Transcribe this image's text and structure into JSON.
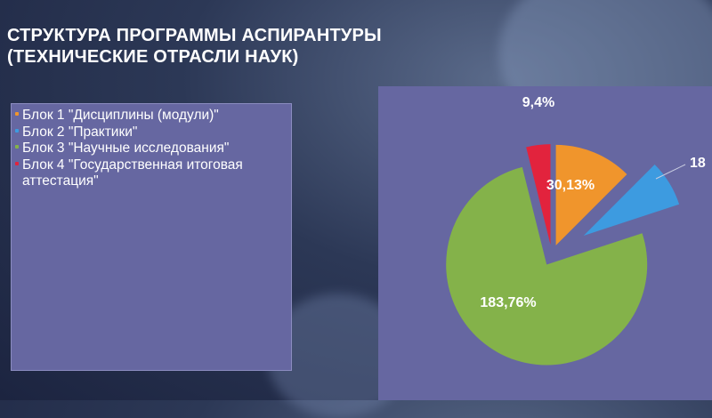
{
  "slide": {
    "title_line1": "СТРУКТУРА ПРОГРАММЫ АСПИРАНТУРЫ",
    "title_line2": "(ТЕХНИЧЕСКИЕ ОТРАСЛИ НАУК)"
  },
  "colors": {
    "block1": "#f0952c",
    "block2": "#3d9be0",
    "block3": "#84b24a",
    "block4": "#e2233d",
    "panel": "#6667a1"
  },
  "chart_data": {
    "type": "pie",
    "legend_position": "left",
    "slices": [
      {
        "label": "Блок 1 \"Дисциплины (модули)\"",
        "value": 30.13,
        "value_label": "30,13%",
        "color": "#f0952c"
      },
      {
        "label": "Блок 2 \"Практики\"",
        "value": 18,
        "value_label": "18",
        "color": "#3d9be0"
      },
      {
        "label": "Блок 3 \"Научные исследования\"",
        "value": 183.76,
        "value_label": "183,76%",
        "color": "#84b24a"
      },
      {
        "label": "Блок 4 \"Государственная итоговая аттестация\"",
        "value": 9.4,
        "value_label": "9,4%",
        "color": "#e2233d"
      }
    ]
  }
}
